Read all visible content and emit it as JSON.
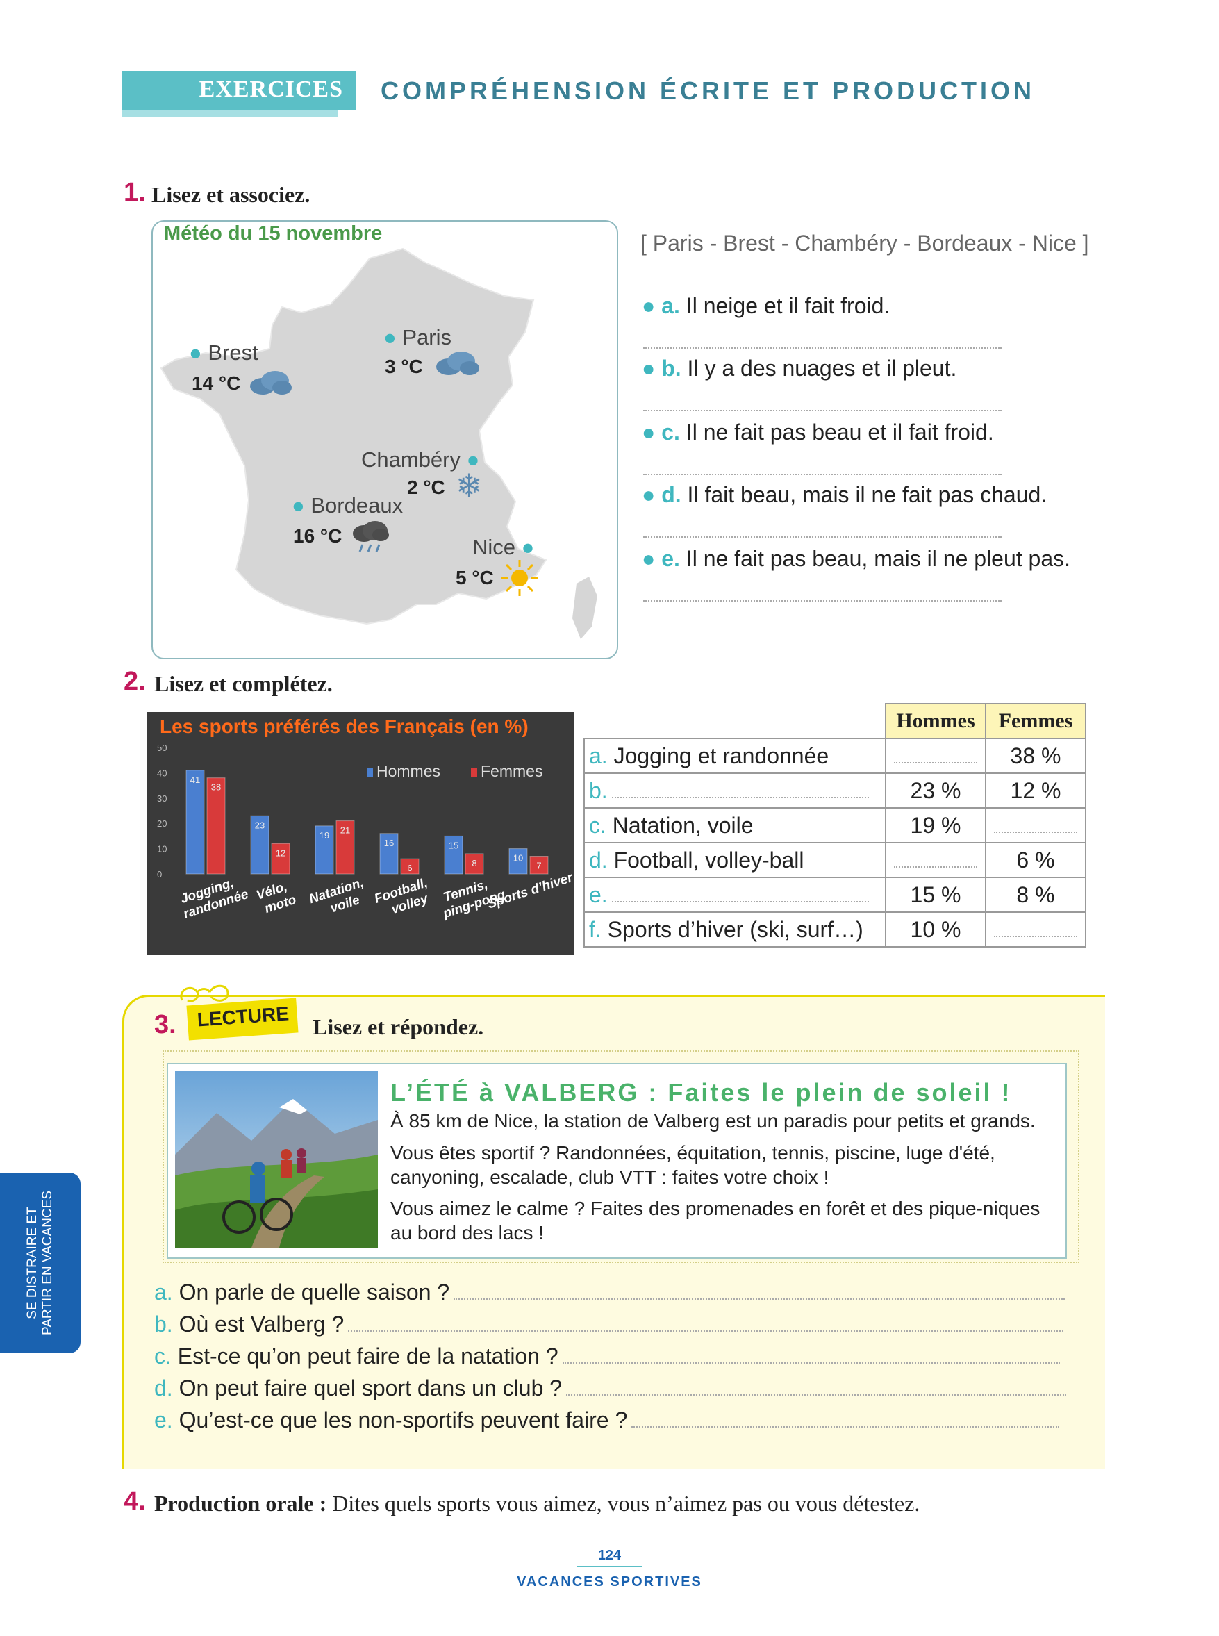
{
  "header": {
    "tab": "EXERCICES",
    "title": "COMPRÉHENSION ÉCRITE ET PRODUCTION"
  },
  "ex1": {
    "num": "1.",
    "instruction": "Lisez et associez.",
    "map_title": "Météo du 15 novembre",
    "cities": [
      {
        "name": "Brest",
        "temp": "14 °C",
        "icon": "cloud-icon"
      },
      {
        "name": "Paris",
        "temp": "3 °C",
        "icon": "cloud-icon"
      },
      {
        "name": "Chambéry",
        "temp": "2 °C",
        "icon": "snowflake-icon"
      },
      {
        "name": "Bordeaux",
        "temp": "16 °C",
        "icon": "rain-cloud-icon"
      },
      {
        "name": "Nice",
        "temp": "5 °C",
        "icon": "sun-icon"
      }
    ],
    "city_list": "[ Paris - Brest - Chambéry - Bordeaux - Nice ]",
    "items": [
      {
        "letter": "a.",
        "text": "Il neige et il fait froid."
      },
      {
        "letter": "b.",
        "text": "Il y a des nuages et il pleut."
      },
      {
        "letter": "c.",
        "text": "Il ne fait pas beau et il fait froid."
      },
      {
        "letter": "d.",
        "text": "Il fait beau, mais il ne fait pas chaud."
      },
      {
        "letter": "e.",
        "text": "Il ne fait pas beau, mais il ne pleut pas."
      }
    ]
  },
  "ex2": {
    "num": "2.",
    "instruction": "Lisez et complétez.",
    "table": {
      "head": [
        "Hommes",
        "Femmes"
      ],
      "rows": [
        {
          "letter": "a.",
          "label": "Jogging et randonnée",
          "hommes": "",
          "femmes": "38 %"
        },
        {
          "letter": "b.",
          "label": "",
          "hommes": "23 %",
          "femmes": "12 %"
        },
        {
          "letter": "c.",
          "label": "Natation, voile",
          "hommes": "19 %",
          "femmes": ""
        },
        {
          "letter": "d.",
          "label": "Football, volley-ball",
          "hommes": "",
          "femmes": "6 %"
        },
        {
          "letter": "e.",
          "label": "",
          "hommes": "15 %",
          "femmes": "8 %"
        },
        {
          "letter": "f.",
          "label": "Sports d’hiver (ski, surf…)",
          "hommes": "10 %",
          "femmes": ""
        }
      ]
    }
  },
  "chart_data": {
    "type": "bar",
    "title": "Les sports préférés des Français (en %)",
    "categories": [
      "Jogging, randonnée",
      "Vélo, moto",
      "Natation, voile",
      "Football, volley",
      "Tennis, ping-pong",
      "Sports d’hiver"
    ],
    "series": [
      {
        "name": "Hommes",
        "values": [
          41,
          23,
          19,
          16,
          15,
          10
        ],
        "color": "#4a7fd0"
      },
      {
        "name": "Femmes",
        "values": [
          38,
          12,
          21,
          6,
          8,
          7
        ],
        "color": "#d83a3a"
      }
    ],
    "ylim": [
      0,
      50
    ],
    "yticks": [
      "0",
      "10",
      "20",
      "30",
      "40",
      "50"
    ],
    "legend": "top-right",
    "grid": false
  },
  "ex3": {
    "num": "3.",
    "tag": "LECTURE",
    "instruction": "Lisez et répondez.",
    "article_title": "L’ÉTÉ à VALBERG : Faites le plein de soleil !",
    "paragraphs": [
      "À 85 km de Nice, la station de Valberg est un paradis pour petits et grands.",
      "Vous êtes sportif ? Randonnées, équitation, tennis, piscine, luge d'été, canyoning, escalade, club VTT : faites votre choix !",
      "Vous aimez le calme ? Faites des promenades en forêt et des pique-niques au bord des lacs !"
    ],
    "questions": [
      {
        "letter": "a.",
        "text": "On parle de quelle saison ?"
      },
      {
        "letter": "b.",
        "text": "Où est Valberg ?"
      },
      {
        "letter": "c.",
        "text": "Est-ce qu’on peut faire de la natation ?"
      },
      {
        "letter": "d.",
        "text": "On peut faire quel sport dans un club ?"
      },
      {
        "letter": "e.",
        "text": "Qu’est-ce que les non-sportifs peuvent faire ?"
      }
    ]
  },
  "ex4": {
    "num": "4.",
    "label": "Production orale :",
    "text": "Dites quels sports vous aimez, vous n’aimez pas ou vous détestez."
  },
  "side_tab": {
    "line1": "SE DISTRAIRE ET",
    "line2": "PARTIR EN VACANCES"
  },
  "footer": {
    "page": "124",
    "title": "VACANCES SPORTIVES"
  }
}
